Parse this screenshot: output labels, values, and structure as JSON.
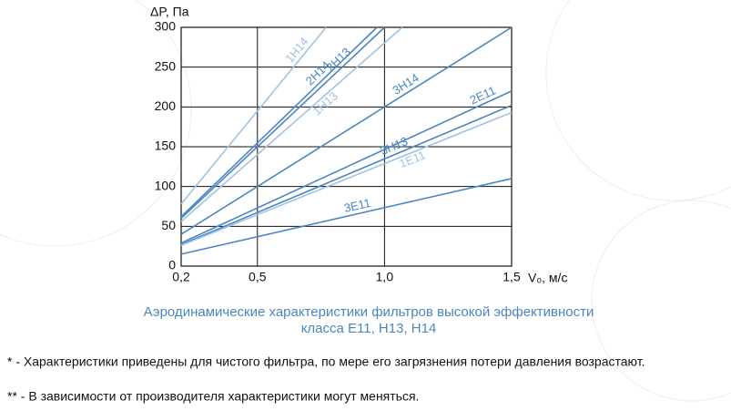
{
  "chart_data": {
    "type": "line",
    "x_label": "V₀, м/с",
    "y_label": "ΔP, Па",
    "xlim": [
      0.2,
      1.5
    ],
    "ylim": [
      0,
      300
    ],
    "xticks": [
      {
        "value": 0.2,
        "label": "0,2"
      },
      {
        "value": 0.5,
        "label": "0,5"
      },
      {
        "value": 1.0,
        "label": "1,0"
      },
      {
        "value": 1.5,
        "label": "1,5"
      }
    ],
    "yticks": [
      0,
      50,
      100,
      150,
      200,
      250,
      300
    ],
    "grid": true,
    "series": [
      {
        "name": "1H14",
        "color": "#9fc3e3",
        "x": [
          0.2,
          0.77
        ],
        "values": [
          78,
          300
        ]
      },
      {
        "name": "2H14",
        "color": "#4a86c0",
        "x": [
          0.2,
          0.97
        ],
        "values": [
          62,
          300
        ]
      },
      {
        "name": "2H13",
        "color": "#4a86c0",
        "x": [
          0.2,
          1.0
        ],
        "values": [
          60,
          300
        ]
      },
      {
        "name": "1H13",
        "color": "#9fc3e3",
        "x": [
          0.2,
          1.07
        ],
        "values": [
          56,
          300
        ]
      },
      {
        "name": "3H14",
        "color": "#4a86c0",
        "x": [
          0.2,
          1.5
        ],
        "values": [
          40,
          300
        ]
      },
      {
        "name": "2E11",
        "color": "#4a86c0",
        "x": [
          0.2,
          1.5
        ],
        "values": [
          29,
          220
        ]
      },
      {
        "name": "3H13",
        "color": "#4a86c0",
        "x": [
          0.2,
          1.5
        ],
        "values": [
          27,
          202
        ]
      },
      {
        "name": "1E11",
        "color": "#9fc3e3",
        "x": [
          0.2,
          1.5
        ],
        "values": [
          26,
          193
        ]
      },
      {
        "name": "3E11",
        "color": "#4a86c0",
        "x": [
          0.2,
          1.5
        ],
        "values": [
          15,
          110
        ]
      }
    ]
  },
  "caption": [
    "Аэродинамические характеристики фильтров высокой эффективности",
    "класса Е11, Н13, Н14"
  ],
  "notes": [
    "* - Характеристики приведены для чистого фильтра, по мере его загрязнения потери давления возрастают.",
    "** -  В зависимости от производителя характеристики могут меняться."
  ]
}
